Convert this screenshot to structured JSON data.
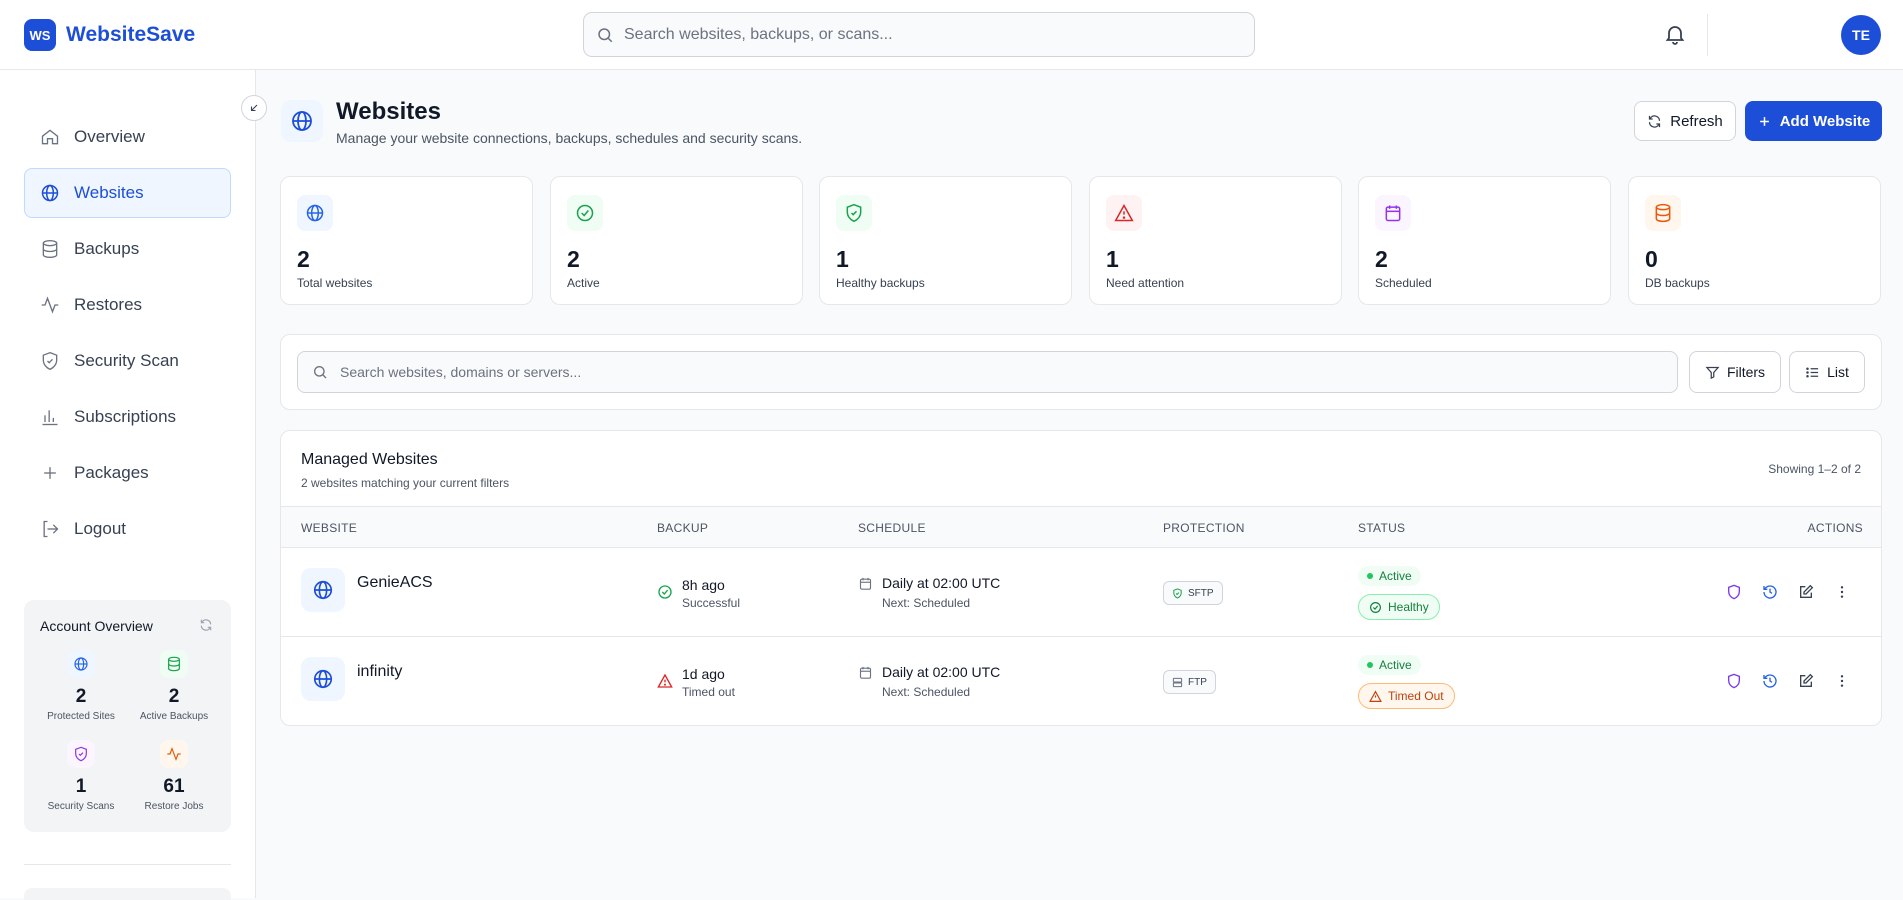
{
  "app": {
    "logo_mark": "WS",
    "name": "WebsiteSave"
  },
  "header": {
    "search_placeholder": "Search websites, backups, or scans...",
    "avatar_initials": "TE"
  },
  "sidebar": {
    "items": [
      {
        "label": "Overview",
        "icon": "home-icon",
        "active": false
      },
      {
        "label": "Websites",
        "icon": "globe-icon",
        "active": true
      },
      {
        "label": "Backups",
        "icon": "database-icon",
        "active": false
      },
      {
        "label": "Restores",
        "icon": "activity-icon",
        "active": false
      },
      {
        "label": "Security Scan",
        "icon": "shield-icon",
        "active": false
      },
      {
        "label": "Subscriptions",
        "icon": "bar-chart-icon",
        "active": false
      },
      {
        "label": "Packages",
        "icon": "plus-icon",
        "active": false
      },
      {
        "label": "Logout",
        "icon": "logout-icon",
        "active": false
      }
    ],
    "account": {
      "title": "Account Overview",
      "stats": [
        {
          "value": "2",
          "label": "Protected Sites",
          "icon": "globe-icon",
          "color": "#2563eb"
        },
        {
          "value": "2",
          "label": "Active Backups",
          "icon": "database-icon",
          "color": "#16a34a"
        },
        {
          "value": "1",
          "label": "Security Scans",
          "icon": "shield-icon",
          "color": "#9333ea"
        },
        {
          "value": "61",
          "label": "Restore Jobs",
          "icon": "activity-icon",
          "color": "#ea580c"
        }
      ]
    }
  },
  "page": {
    "title": "Websites",
    "subtitle": "Manage your website connections, backups, schedules and security scans.",
    "refresh_label": "Refresh",
    "add_label": "Add Website"
  },
  "stats": [
    {
      "value": "2",
      "label": "Total websites",
      "icon": "globe-icon",
      "color": "#2563eb",
      "bg": "#eff6ff"
    },
    {
      "value": "2",
      "label": "Active",
      "icon": "check-circle-icon",
      "color": "#16a34a",
      "bg": "#f0fdf4"
    },
    {
      "value": "1",
      "label": "Healthy backups",
      "icon": "shield-check-icon",
      "color": "#16a34a",
      "bg": "#f0fdf4"
    },
    {
      "value": "1",
      "label": "Need attention",
      "icon": "warning-icon",
      "color": "#dc2626",
      "bg": "#fef2f2"
    },
    {
      "value": "2",
      "label": "Scheduled",
      "icon": "calendar-icon",
      "color": "#9333ea",
      "bg": "#faf5ff"
    },
    {
      "value": "0",
      "label": "DB backups",
      "icon": "database-icon",
      "color": "#ea580c",
      "bg": "#fff7ed"
    }
  ],
  "filters": {
    "search_placeholder": "Search websites, domains or servers...",
    "filters_label": "Filters",
    "list_label": "List"
  },
  "table": {
    "title": "Managed Websites",
    "subtitle": "2 websites matching your current filters",
    "showing": "Showing 1–2 of 2",
    "columns": [
      "WEBSITE",
      "BACKUP",
      "SCHEDULE",
      "PROTECTION",
      "STATUS",
      "ACTIONS"
    ],
    "rows": [
      {
        "name": "GenieACS",
        "backup_time": "8h ago",
        "backup_status": "Successful",
        "schedule": "Daily at 02:00 UTC",
        "next": "Next: Scheduled",
        "protection": "SFTP",
        "status": "Active",
        "health": "Healthy"
      },
      {
        "name": "infinity",
        "backup_time": "1d ago",
        "backup_status": "Timed out",
        "schedule": "Daily at 02:00 UTC",
        "next": "Next: Scheduled",
        "protection": "FTP",
        "status": "Active",
        "health": "Timed Out"
      }
    ]
  }
}
